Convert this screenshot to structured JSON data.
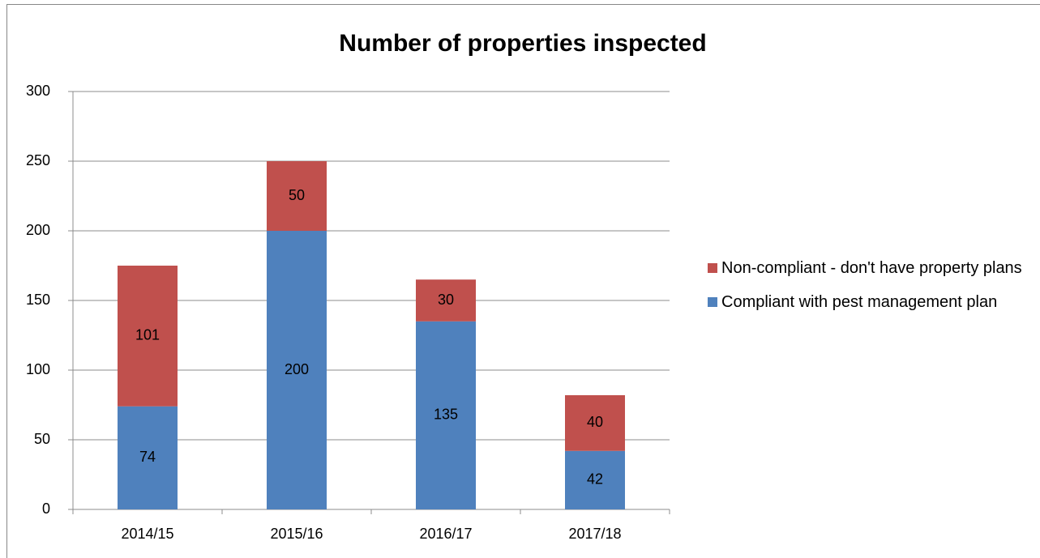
{
  "chart_data": {
    "type": "stacked_bar",
    "title": "Number of properties inspected",
    "categories": [
      "2014/15",
      "2015/16",
      "2016/17",
      "2017/18"
    ],
    "series": [
      {
        "name": "Compliant with pest management plan",
        "color": "#4f81bd",
        "values": [
          74,
          200,
          135,
          42
        ]
      },
      {
        "name": "Non-compliant - don't have property plans",
        "color": "#c0504d",
        "values": [
          101,
          50,
          30,
          40
        ]
      }
    ],
    "ylim": [
      0,
      300
    ],
    "yticks": [
      0,
      50,
      100,
      150,
      200,
      250,
      300
    ],
    "grid": true,
    "legend": "right"
  }
}
